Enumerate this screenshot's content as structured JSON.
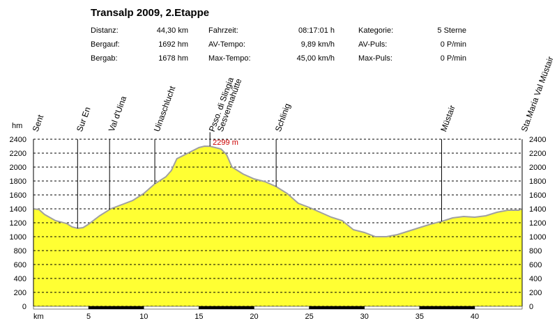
{
  "title": "Transalp 2009, 2.Etappe",
  "stats": [
    [
      {
        "label": "Distanz:",
        "value": "44,30 km"
      },
      {
        "label": "Fahrzeit:",
        "value": "08:17:01 h"
      },
      {
        "label": "Kategorie:",
        "value": "5 Sterne"
      }
    ],
    [
      {
        "label": "Bergauf:",
        "value": "1692 hm"
      },
      {
        "label": "AV-Tempo:",
        "value": "9,89 km/h"
      },
      {
        "label": "AV-Puls:",
        "value": "0 P/min"
      }
    ],
    [
      {
        "label": "Bergab:",
        "value": "1678 hm"
      },
      {
        "label": "Max-Tempo:",
        "value": "45,00 km/h"
      },
      {
        "label": "Max-Puls:",
        "value": "0 P/min"
      }
    ]
  ],
  "chart_data": {
    "type": "area",
    "ylabel": "hm",
    "xlabel": "km",
    "xlim": [
      0,
      44.3
    ],
    "ylim": [
      0,
      2400
    ],
    "yticks": [
      0,
      200,
      400,
      600,
      800,
      1000,
      1200,
      1400,
      1600,
      1800,
      2000,
      2200,
      2400
    ],
    "xticks": [
      5,
      10,
      15,
      20,
      25,
      30,
      35,
      40
    ],
    "grid": "horizontal dashed",
    "fill_color": "#ffff33",
    "line_color": "#a0a0a0",
    "max_annotation": {
      "x": 16.0,
      "y": 2299,
      "label": "2299 m"
    },
    "waypoints": [
      {
        "name": "Sent",
        "x": 0.0
      },
      {
        "name": "Sur En",
        "x": 4.0
      },
      {
        "name": "Val d'Uina",
        "x": 6.9
      },
      {
        "name": "Uinaschlucht",
        "x": 11.0
      },
      {
        "name": "Psso. di Slingia",
        "x": 16.0
      },
      {
        "name": "Sesvennahütte",
        "x": 16.0
      },
      {
        "name": "Schlinig",
        "x": 22.0
      },
      {
        "name": "Müstair",
        "x": 37.0
      },
      {
        "name": "Sta.Maria Val Müstair",
        "x": 44.3
      }
    ],
    "profile": {
      "x": [
        0,
        0.5,
        1,
        2,
        3,
        3.5,
        4,
        4.5,
        5,
        6,
        7,
        8,
        9,
        10,
        11,
        12,
        12.5,
        13,
        14,
        15,
        15.5,
        16,
        17,
        17.5,
        18,
        19,
        20,
        21,
        22,
        23,
        24,
        25,
        26,
        27,
        28,
        29,
        30,
        31,
        32,
        33,
        34,
        35,
        36,
        37,
        38,
        39,
        40,
        41,
        42,
        43,
        44,
        44.3
      ],
      "y": [
        1400,
        1390,
        1320,
        1230,
        1190,
        1140,
        1120,
        1130,
        1180,
        1300,
        1400,
        1460,
        1520,
        1620,
        1760,
        1860,
        1950,
        2120,
        2200,
        2280,
        2300,
        2299,
        2260,
        2180,
        2000,
        1900,
        1830,
        1790,
        1720,
        1620,
        1480,
        1420,
        1350,
        1280,
        1230,
        1100,
        1060,
        1000,
        1000,
        1030,
        1080,
        1130,
        1180,
        1220,
        1270,
        1290,
        1280,
        1300,
        1350,
        1380,
        1380,
        1400
      ]
    }
  }
}
